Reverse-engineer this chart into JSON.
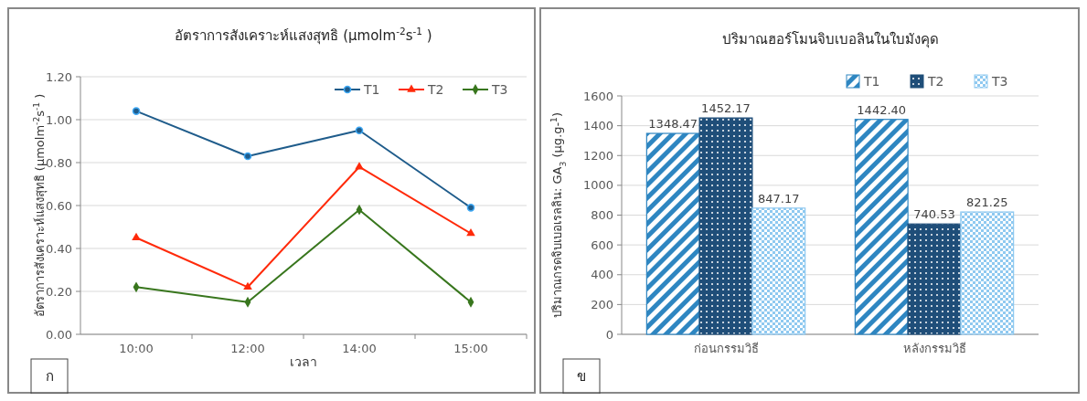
{
  "chart_data": [
    {
      "type": "line",
      "title": "อัตราการสังเคราะห์แสงสุทธิ (µmolm$^{-2}$s$^{-1}$ )",
      "xlabel": "เวลา",
      "ylabel": "อัตราการสังเคราะห์แสงสุทธิ (µmolm$^{-2}$s$^{-1}$ )",
      "categories": [
        "10:00",
        "12:00",
        "14:00",
        "15:00"
      ],
      "series": [
        {
          "name": "T1",
          "color": "#1f5c8b",
          "marker": "circle",
          "values": [
            1.04,
            0.83,
            0.95,
            0.59
          ]
        },
        {
          "name": "T2",
          "color": "#ff2a0a",
          "marker": "triangle",
          "values": [
            0.45,
            0.22,
            0.78,
            0.47
          ]
        },
        {
          "name": "T3",
          "color": "#38761d",
          "marker": "diamond",
          "values": [
            0.22,
            0.15,
            0.58,
            0.15
          ]
        }
      ],
      "ylim": [
        0,
        1.2
      ],
      "yticks": [
        {
          "value": 0,
          "label": "0.00"
        },
        {
          "value": 0.2,
          "label": "0.20"
        },
        {
          "value": 0.4,
          "label": "0.40"
        },
        {
          "value": 0.6,
          "label": "0.60"
        },
        {
          "value": 0.8,
          "label": "0.80"
        },
        {
          "value": 1,
          "label": "1.00"
        },
        {
          "value": 1.2,
          "label": "1.20"
        }
      ],
      "grid": "y",
      "legend": "top right",
      "line_style": "solid",
      "annotations": [
        "ก"
      ]
    },
    {
      "type": "bar",
      "title": "ปริมาณฮอร์โมนจิบเบอลินในใบมังคุด",
      "ylabel": "ปริมาณกรดจิบเบอเรลลิน: GA$_{3}$ (µg.g-$^{1}$)",
      "categories": [
        "ก่อนกรรมวิธี",
        "หลังกรรมวิธี"
      ],
      "series": [
        {
          "name": "T1",
          "color": "#2e86c1",
          "values": [
            1348.47,
            1442.4
          ],
          "value_labels": [
            "1348.47",
            "1442.40"
          ]
        },
        {
          "name": "T2",
          "color": "#1f4e79",
          "values": [
            1452.17,
            740.53
          ],
          "value_labels": [
            "1452.17",
            "740.53"
          ]
        },
        {
          "name": "T3",
          "color": "#8fc9f0",
          "values": [
            847.17,
            821.25
          ],
          "value_labels": [
            "847.17",
            "821.25"
          ]
        }
      ],
      "ylim": [
        0,
        1600
      ],
      "yticks": [
        0,
        200,
        400,
        600,
        800,
        1000,
        1200,
        1400,
        1600
      ],
      "grid": "y",
      "legend": "top right",
      "annotations": [
        "ข"
      ]
    }
  ]
}
